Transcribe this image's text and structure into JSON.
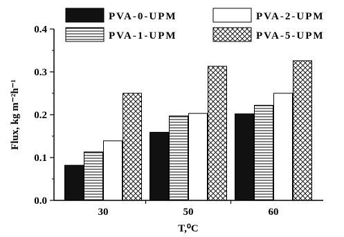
{
  "chart_data": {
    "type": "bar",
    "categories": [
      "30",
      "50",
      "60"
    ],
    "series": [
      {
        "name": "PVA-0-UPM",
        "values": [
          0.082,
          0.159,
          0.202
        ]
      },
      {
        "name": "PVA-1-UPM",
        "values": [
          0.113,
          0.197,
          0.222
        ]
      },
      {
        "name": "PVA-2-UPM",
        "values": [
          0.139,
          0.203,
          0.25
        ]
      },
      {
        "name": "PVA-5-UPM",
        "values": [
          0.25,
          0.313,
          0.326
        ]
      }
    ],
    "title": "",
    "xlabel": "T,⁰C",
    "ylabel": "Flux, kg m⁻²h⁻¹",
    "ylim": [
      0.0,
      0.4
    ],
    "yticks": [
      "0.0",
      "0.1",
      "0.2",
      "0.3",
      "0.4"
    ],
    "grid": false,
    "legend_position": "top",
    "series_styles": [
      {
        "fill": "solid",
        "color": "#111111"
      },
      {
        "fill": "horizontal-stripes",
        "color": "#000000"
      },
      {
        "fill": "white",
        "color": "#ffffff"
      },
      {
        "fill": "crosshatch",
        "color": "#000000"
      }
    ]
  }
}
